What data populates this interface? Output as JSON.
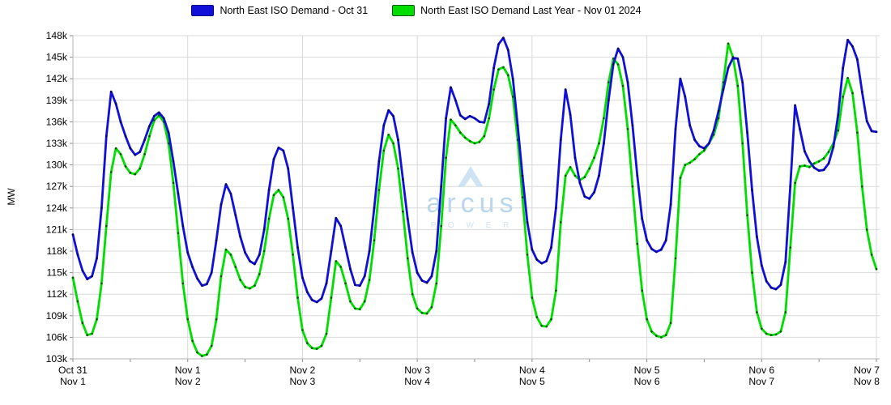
{
  "legend": {
    "items": [
      {
        "label": "North East ISO Demand - Oct 31",
        "color": "#1010d8",
        "border": "#000080"
      },
      {
        "label": "North East ISO Demand Last Year - Nov 01 2024",
        "color": "#00dd00",
        "border": "#005500"
      }
    ]
  },
  "watermark": {
    "brand": "arcus",
    "sub": "P O W E R",
    "logo": "mountain-triangle-icon",
    "brand_color": "#b9d6ec",
    "sub_color": "#cfe3f3",
    "logo_color": "#cfe4f3"
  },
  "chart_data": {
    "type": "line",
    "title": "",
    "ylabel": "MW",
    "grid": true,
    "legend_position": "top",
    "y_axis": {
      "lim": [
        103,
        148
      ],
      "step": 3,
      "suffix": "k",
      "unit": "MW",
      "tick_labels": [
        "103k",
        "106k",
        "109k",
        "112k",
        "115k",
        "118k",
        "121k",
        "124k",
        "127k",
        "130k",
        "133k",
        "136k",
        "139k",
        "142k",
        "145k",
        "148k"
      ]
    },
    "x_axis": {
      "start_hour": 0,
      "end_hour": 168,
      "hours_per_day": 24,
      "minor_tick_every_hours": 12,
      "tick_labels_top": [
        "Oct 31",
        "Nov 1",
        "Nov 2",
        "Nov 3",
        "Nov 4",
        "Nov 5",
        "Nov 6",
        "Nov 7"
      ],
      "tick_labels_bottom": [
        "Nov 1",
        "Nov 2",
        "Nov 3",
        "Nov 4",
        "Nov 5",
        "Nov 6",
        "Nov 7",
        "Nov 8"
      ]
    },
    "series": [
      {
        "name": "North East ISO Demand - Oct 31",
        "color": "#1010d8",
        "marker_color": "#00006a",
        "units": "thousand MW",
        "values_k": [
          120.3,
          117.5,
          115.3,
          114.1,
          114.5,
          117.0,
          124.0,
          134.0,
          140.2,
          138.5,
          136.0,
          134.0,
          132.3,
          131.4,
          131.8,
          133.5,
          135.4,
          136.8,
          137.3,
          136.5,
          134.5,
          130.5,
          126.0,
          121.5,
          117.8,
          115.8,
          114.2,
          113.2,
          113.4,
          115.0,
          119.5,
          124.5,
          127.3,
          126.0,
          123.0,
          120.0,
          117.8,
          116.6,
          116.2,
          117.5,
          121.0,
          126.5,
          130.8,
          132.4,
          132.0,
          129.5,
          124.0,
          118.5,
          114.3,
          112.3,
          111.2,
          110.9,
          111.4,
          113.5,
          118.0,
          122.6,
          121.5,
          118.5,
          115.5,
          113.3,
          113.2,
          114.5,
          118.0,
          124.0,
          130.5,
          135.5,
          137.6,
          136.8,
          133.5,
          128.0,
          122.5,
          117.8,
          115.0,
          113.9,
          113.6,
          114.5,
          118.0,
          127.0,
          136.5,
          140.8,
          139.0,
          136.9,
          136.4,
          136.8,
          136.5,
          136.0,
          135.9,
          138.5,
          143.5,
          146.8,
          147.7,
          146.0,
          142.0,
          135.5,
          128.5,
          122.0,
          118.2,
          116.8,
          116.3,
          116.6,
          118.5,
          124.0,
          133.5,
          140.5,
          137.0,
          131.0,
          127.5,
          125.6,
          125.3,
          126.2,
          128.5,
          133.0,
          139.0,
          144.0,
          146.2,
          145.0,
          141.5,
          135.5,
          128.5,
          122.5,
          119.5,
          118.3,
          117.9,
          118.2,
          119.5,
          124.5,
          135.0,
          142.0,
          139.5,
          135.5,
          133.5,
          132.6,
          132.3,
          133.0,
          134.8,
          137.5,
          140.5,
          143.5,
          144.9,
          144.8,
          141.5,
          134.5,
          126.5,
          120.0,
          116.0,
          113.8,
          112.9,
          112.7,
          113.3,
          116.5,
          127.0,
          138.3,
          135.0,
          131.9,
          130.5,
          129.6,
          129.2,
          129.3,
          130.2,
          132.5,
          137.0,
          143.5,
          147.4,
          146.5,
          144.7,
          140.2,
          136.1,
          134.7,
          134.6
        ]
      },
      {
        "name": "North East ISO Demand Last Year - Nov 01 2024",
        "color": "#00dd00",
        "marker_color": "#005500",
        "units": "thousand MW",
        "values_k": [
          114.3,
          111.0,
          108.0,
          106.3,
          106.5,
          108.5,
          113.5,
          121.5,
          129.0,
          132.3,
          131.5,
          129.8,
          128.9,
          128.7,
          129.5,
          131.5,
          134.0,
          136.2,
          136.9,
          136.0,
          133.0,
          127.5,
          120.5,
          113.5,
          108.5,
          105.5,
          103.9,
          103.4,
          103.6,
          104.8,
          108.5,
          114.5,
          118.2,
          117.5,
          115.8,
          114.0,
          113.0,
          112.8,
          113.2,
          114.8,
          118.0,
          122.5,
          125.8,
          126.5,
          125.5,
          122.5,
          117.5,
          111.5,
          107.0,
          105.2,
          104.5,
          104.4,
          104.8,
          106.5,
          111.5,
          116.6,
          115.8,
          113.5,
          111.0,
          110.0,
          109.9,
          111.0,
          114.0,
          119.5,
          126.5,
          132.0,
          134.2,
          133.0,
          129.5,
          123.5,
          117.0,
          112.0,
          110.0,
          109.4,
          109.3,
          110.2,
          113.5,
          121.5,
          131.0,
          136.3,
          135.5,
          134.5,
          133.8,
          133.3,
          133.0,
          133.2,
          134.0,
          136.5,
          140.5,
          143.3,
          143.6,
          142.5,
          139.5,
          133.5,
          125.5,
          117.5,
          111.5,
          108.8,
          107.6,
          107.5,
          108.5,
          112.5,
          122.0,
          128.5,
          129.7,
          128.5,
          127.9,
          128.3,
          129.5,
          131.0,
          133.0,
          136.5,
          141.5,
          144.8,
          144.0,
          141.0,
          135.0,
          127.0,
          119.0,
          112.5,
          108.5,
          106.8,
          106.2,
          106.0,
          106.3,
          108.0,
          117.0,
          128.2,
          130.0,
          130.3,
          130.8,
          131.5,
          132.0,
          133.0,
          134.2,
          136.5,
          141.5,
          146.9,
          145.0,
          141.0,
          133.0,
          123.0,
          115.0,
          109.5,
          107.2,
          106.5,
          106.3,
          106.4,
          106.8,
          109.5,
          118.5,
          127.5,
          129.8,
          129.9,
          129.7,
          130.2,
          130.5,
          130.9,
          131.8,
          133.0,
          134.8,
          139.5,
          142.1,
          140.0,
          134.5,
          127.0,
          121.0,
          117.5,
          115.5
        ]
      }
    ]
  }
}
